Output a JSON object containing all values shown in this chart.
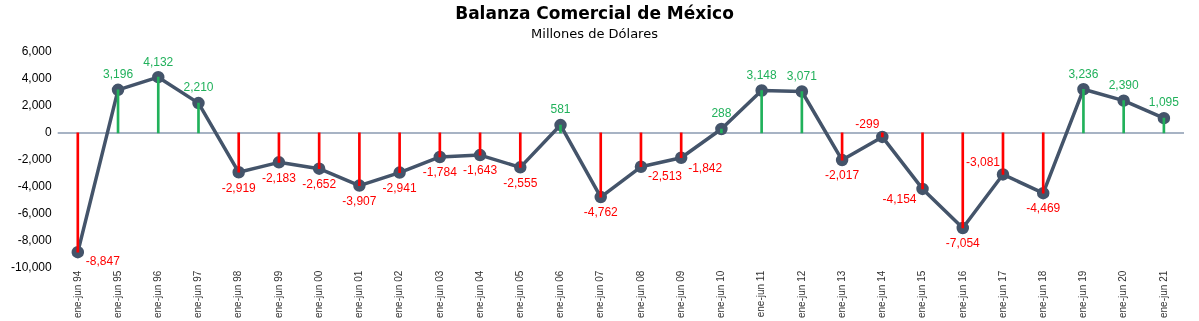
{
  "chart_data": {
    "type": "line",
    "title": "Balanza Comercial de México",
    "subtitle": "Millones de Dólares",
    "categories": [
      "ene-jun 94",
      "ene-jun 95",
      "ene-jun 96",
      "ene-jun 97",
      "ene-jun 98",
      "ene-jun 99",
      "ene-jun 00",
      "ene-jun 01",
      "ene-jun 02",
      "ene-jun 03",
      "ene-jun 04",
      "ene-jun 05",
      "ene-jun 06",
      "ene-jun 07",
      "ene-jun 08",
      "ene-jun 09",
      "ene-jun 10",
      "ene-jun 11",
      "ene-jun 12",
      "ene-jun 13",
      "ene-jun 14",
      "ene-jun 15",
      "ene-jun 16",
      "ene-jun 17",
      "ene-jun 18",
      "ene-jun 19",
      "ene-jun 20",
      "ene-jun 21"
    ],
    "series": [
      {
        "color": "#44546a",
        "values": [
          -8847,
          3196,
          4132,
          2210,
          -2919,
          -2183,
          -2652,
          -3907,
          -2941,
          -1784,
          -1643,
          -2555,
          581,
          -4762,
          -2513,
          -1842,
          288,
          3148,
          3071,
          -2017,
          -299,
          -4154,
          -7054,
          -3081,
          -4469,
          3236,
          2390,
          1095
        ],
        "value_labels": [
          "-8,847",
          "3,196",
          "4,132",
          "2,210",
          "-2,919",
          "-2,183",
          "-2,652",
          "-3,907",
          "-2,941",
          "-1,784",
          "-1,643",
          "-2,555",
          "581",
          "-4,762",
          "-2,513",
          "-1,842",
          "288",
          "3,148",
          "3,071",
          "-2,017",
          "-299",
          "-4,154",
          "-7,054",
          "-3,081",
          "-4,469",
          "3,236",
          "2,390",
          "1,095"
        ]
      },
      {
        "type": "bar",
        "values": [
          -8847,
          3196,
          4132,
          2210,
          -2919,
          -2183,
          -2652,
          -3907,
          -2941,
          -1784,
          -1643,
          -2555,
          581,
          -4762,
          -2513,
          -1842,
          288,
          3148,
          3071,
          -2017,
          -299,
          -4154,
          -7054,
          -3081,
          -4469,
          3236,
          2390,
          1095
        ],
        "colors": [
          "#ff0000",
          "#21b15b",
          "#21b15b",
          "#21b15b",
          "#ff0000",
          "#ff0000",
          "#ff0000",
          "#ff0000",
          "#ff0000",
          "#ff0000",
          "#ff0000",
          "#ff0000",
          "#21b15b",
          "#ff0000",
          "#ff0000",
          "#ff0000",
          "#21b15b",
          "#21b15b",
          "#21b15b",
          "#ff0000",
          "#ff0000",
          "#ff0000",
          "#ff0000",
          "#ff0000",
          "#ff0000",
          "#21b15b",
          "#21b15b",
          "#21b15b"
        ]
      }
    ],
    "ylim": [
      -10000,
      6000
    ],
    "yticks": [
      {
        "value": -10000,
        "label": "-10,000"
      },
      {
        "value": -8000,
        "label": "-8,000"
      },
      {
        "value": -6000,
        "label": "-6,000"
      },
      {
        "value": -4000,
        "label": "-4,000"
      },
      {
        "value": -2000,
        "label": "-2,000"
      },
      0,
      {
        "value": 2000,
        "label": "2,000"
      },
      {
        "value": 4000,
        "label": "4,000"
      },
      {
        "value": 6000,
        "label": "6,000"
      }
    ],
    "ref_lines": [
      {
        "axis": "y",
        "value": 0,
        "color": "#8a9ab0"
      }
    ],
    "grid": false,
    "legend": false,
    "marker": "circle",
    "line_style": "solid"
  }
}
